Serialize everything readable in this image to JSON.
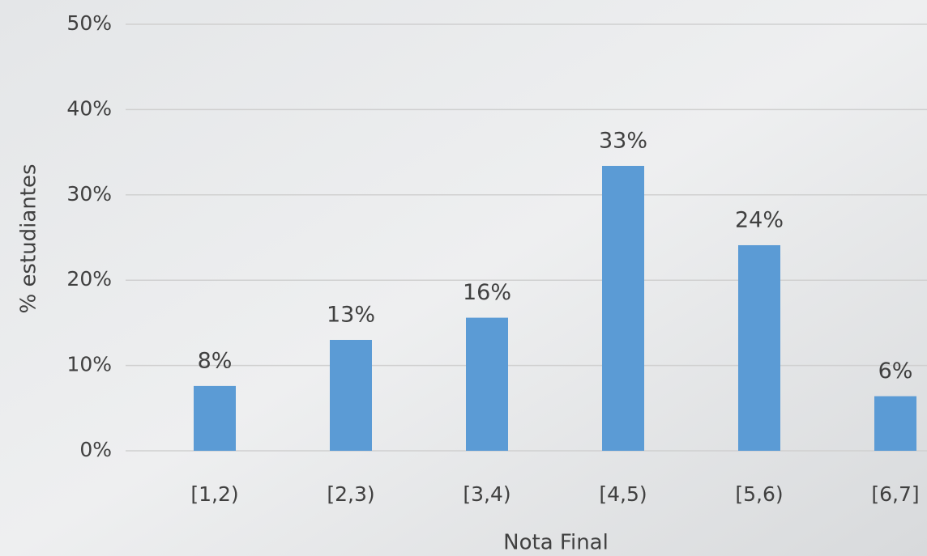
{
  "chart_data": {
    "type": "bar",
    "x_label": "Nota Final",
    "y_label": "% estudiantes",
    "categories": [
      "[1,2)",
      "[2,3)",
      "[3,4)",
      "[4,5)",
      "[5,6)",
      "[6,7]"
    ],
    "values": [
      7.6,
      13.0,
      15.6,
      33.4,
      24.1,
      6.4
    ],
    "value_labels": [
      "8%",
      "13%",
      "16%",
      "33%",
      "24%",
      "6%"
    ],
    "color": "#5b9bd5",
    "ylim": [
      0,
      50
    ],
    "yticks": [
      {
        "value": 0,
        "label": "0%"
      },
      {
        "value": 10,
        "label": "10%"
      },
      {
        "value": 20,
        "label": "20%"
      },
      {
        "value": 30,
        "label": "30%"
      },
      {
        "value": 40,
        "label": "40%"
      },
      {
        "value": 50,
        "label": "50%"
      }
    ],
    "grid": true
  }
}
